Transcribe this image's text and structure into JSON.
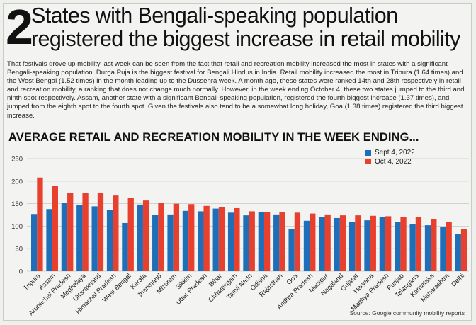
{
  "header": {
    "number": "2",
    "title": "States with Bengali-speaking population registered the biggest increase in retail mobility"
  },
  "intro": "That festivals drove up mobility last week can be seen from the fact that retail and recreation mobility increased the most in states with a significant Bengali-speaking population. Durga Puja is the biggest festival for Bengali Hindus in India. Retail mobility increased the most in Tripura (1.64 times) and the West Bengal (1.52 times) in the month leading up to the Dussehra week. A month ago, these states were ranked 14th and 28th respectively in retail and recreation mobility, a ranking that does not change much normally. However, in the week ending October 4, these two states jumped to the third and ninth spot respectively. Assam, another state with a significant Bengali-speaking population, registered the fourth biggest increase (1.37 times), and jumped from the eighth spot to the fourth spot. Given the festivals also tend to be a somewhat long holiday, Goa (1.38 times) registered the third biggest increase.",
  "source": "Source: Google community mobility reports",
  "colors": {
    "sept": "#1f6fb8",
    "oct": "#e8402f",
    "grid": "#c5c8c2"
  },
  "chart_data": {
    "type": "bar",
    "title": "AVERAGE RETAIL AND RECREATION MOBILITY IN THE WEEK ENDING...",
    "xlabel": "",
    "ylabel": "",
    "ylim": [
      0,
      250
    ],
    "yticks": [
      0,
      50,
      100,
      150,
      200,
      250
    ],
    "grid": true,
    "legend_position": "top-right",
    "categories": [
      "Tripura",
      "Assam",
      "Arunachal Pradesh",
      "Meghalaya",
      "Uttarakhand",
      "Himachal Pradesh",
      "West Bengal",
      "Kerala",
      "Jharkhand",
      "Mizoram",
      "Sikkim",
      "Uttar Pradesh",
      "Bihar",
      "Chhattisgarh",
      "Tamil Nadu",
      "Odisha",
      "Rajasthan",
      "Goa",
      "Andhra Pradesh",
      "Manipur",
      "Nagaland",
      "Gujarat",
      "Haryana",
      "Madhya Pradesh",
      "Punjab",
      "Telangana",
      "Karnataka",
      "Maharashtra",
      "Delhi"
    ],
    "series": [
      {
        "name": "Sept 4, 2022",
        "values": [
          127,
          138,
          152,
          147,
          144,
          136,
          107,
          148,
          125,
          126,
          134,
          133,
          139,
          130,
          124,
          131,
          126,
          94,
          112,
          121,
          118,
          109,
          113,
          120,
          110,
          104,
          102,
          99,
          83
        ]
      },
      {
        "name": "Oct 4, 2022",
        "values": [
          208,
          189,
          174,
          173,
          173,
          168,
          162,
          157,
          152,
          150,
          149,
          145,
          142,
          140,
          133,
          131,
          131,
          130,
          128,
          126,
          124,
          124,
          123,
          122,
          121,
          120,
          115,
          110,
          93
        ]
      }
    ]
  }
}
